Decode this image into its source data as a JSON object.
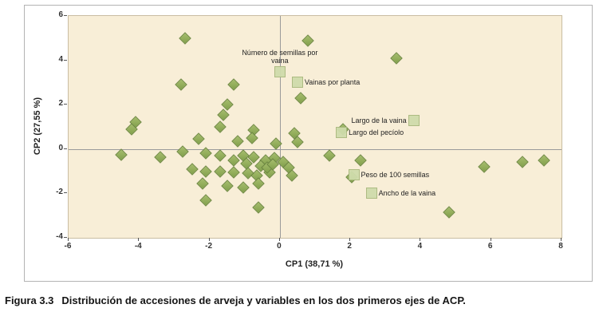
{
  "figure": {
    "caption_label": "Figura 3.3",
    "caption_text": "Distribución de accesiones de arveja y variables en los dos primeros ejes de ACP."
  },
  "chart_data": {
    "type": "scatter",
    "title": "",
    "xlabel": "CP1 (38,71 %)",
    "ylabel": "CP2 (27,55 %)",
    "xlim": [
      -6,
      8
    ],
    "ylim": [
      -4,
      6
    ],
    "x_ticks": [
      -6,
      -4,
      -2,
      0,
      2,
      4,
      6,
      8
    ],
    "y_ticks": [
      -4,
      -2,
      0,
      2,
      4,
      6
    ],
    "grid": false,
    "legend": false,
    "zero_lines": true,
    "plot_bg": "#f8eed7",
    "accession_color": "#8aa353",
    "variable_color": "#cfdcab",
    "series": [
      {
        "name": "Accesiones de arveja",
        "marker": "diamond",
        "points": [
          [
            -2.7,
            5.0
          ],
          [
            0.8,
            4.9
          ],
          [
            3.3,
            4.1
          ],
          [
            -2.8,
            2.9
          ],
          [
            -1.3,
            2.9
          ],
          [
            0.6,
            2.3
          ],
          [
            -1.5,
            2.0
          ],
          [
            -1.6,
            1.55
          ],
          [
            -4.1,
            1.2
          ],
          [
            -4.2,
            0.9
          ],
          [
            -1.7,
            1.0
          ],
          [
            -0.75,
            0.85
          ],
          [
            0.4,
            0.7
          ],
          [
            1.8,
            0.9
          ],
          [
            -2.3,
            0.45
          ],
          [
            -1.2,
            0.35
          ],
          [
            -0.8,
            0.5
          ],
          [
            -0.1,
            0.25
          ],
          [
            0.5,
            0.3
          ],
          [
            -4.5,
            -0.25
          ],
          [
            -3.4,
            -0.35
          ],
          [
            -2.75,
            -0.1
          ],
          [
            -2.1,
            -0.2
          ],
          [
            -1.7,
            -0.3
          ],
          [
            -1.3,
            -0.5
          ],
          [
            -1.05,
            -0.3
          ],
          [
            -0.75,
            -0.35
          ],
          [
            -0.4,
            -0.5
          ],
          [
            -0.15,
            -0.4
          ],
          [
            1.4,
            -0.3
          ],
          [
            2.3,
            -0.5
          ],
          [
            5.8,
            -0.8
          ],
          [
            6.9,
            -0.6
          ],
          [
            7.5,
            -0.5
          ],
          [
            -2.5,
            -0.9
          ],
          [
            -2.1,
            -1.0
          ],
          [
            -1.7,
            -1.0
          ],
          [
            -1.3,
            -1.05
          ],
          [
            -0.9,
            -1.1
          ],
          [
            -0.65,
            -1.2
          ],
          [
            -0.3,
            -1.05
          ],
          [
            0.35,
            -1.2
          ],
          [
            -0.95,
            -0.65
          ],
          [
            -0.55,
            -0.75
          ],
          [
            -0.35,
            -0.85
          ],
          [
            -0.2,
            -0.7
          ],
          [
            0.1,
            -0.6
          ],
          [
            0.25,
            -0.85
          ],
          [
            -2.2,
            -1.55
          ],
          [
            -1.5,
            -1.65
          ],
          [
            -1.05,
            -1.75
          ],
          [
            -0.6,
            -1.55
          ],
          [
            2.05,
            -1.25
          ],
          [
            -2.1,
            -2.3
          ],
          [
            -0.6,
            -2.65
          ],
          [
            4.8,
            -2.85
          ]
        ]
      },
      {
        "name": "Variables",
        "marker": "square",
        "points": [
          {
            "label": "Número de semillas por vaina",
            "x": 0.0,
            "y": 3.5,
            "label_pos": "above"
          },
          {
            "label": "Vainas por planta",
            "x": 0.5,
            "y": 3.0,
            "label_pos": "right"
          },
          {
            "label": "Largo de la vaina",
            "x": 3.8,
            "y": 1.3,
            "label_pos": "left"
          },
          {
            "label": "Largo del pecíolo",
            "x": 1.75,
            "y": 0.75,
            "label_pos": "right"
          },
          {
            "label": "Peso de 100 semillas",
            "x": 2.1,
            "y": -1.15,
            "label_pos": "right"
          },
          {
            "label": "Ancho de la vaina",
            "x": 2.6,
            "y": -2.0,
            "label_pos": "right"
          }
        ]
      }
    ]
  }
}
